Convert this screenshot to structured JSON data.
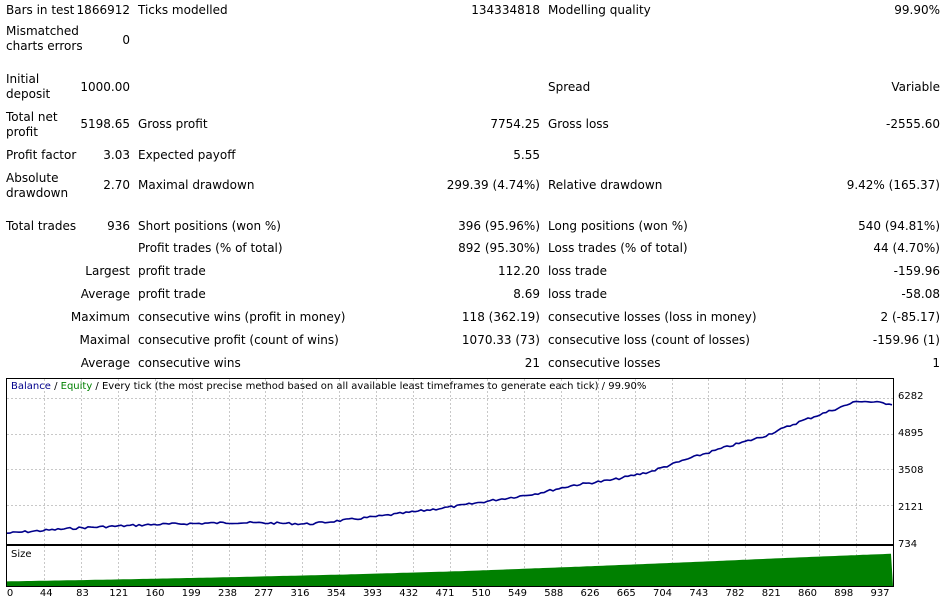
{
  "stats": {
    "bars_in_test_label": "Bars in test",
    "bars_in_test_value": "1866912",
    "ticks_modelled_label": "Ticks modelled",
    "ticks_modelled_value": "134334818",
    "modelling_quality_label": "Modelling quality",
    "modelling_quality_value": "99.90%",
    "mismatched_label": "Mismatched\ncharts errors",
    "mismatched_value": "0",
    "initial_deposit_label": "Initial\ndeposit",
    "initial_deposit_value": "1000.00",
    "spread_label": "Spread",
    "spread_value": "Variable",
    "total_net_profit_label": "Total net\nprofit",
    "total_net_profit_value": "5198.65",
    "gross_profit_label": "Gross profit",
    "gross_profit_value": "7754.25",
    "gross_loss_label": "Gross loss",
    "gross_loss_value": "-2555.60",
    "profit_factor_label": "Profit factor",
    "profit_factor_value": "3.03",
    "expected_payoff_label": "Expected payoff",
    "expected_payoff_value": "5.55",
    "absolute_drawdown_label": "Absolute\ndrawdown",
    "absolute_drawdown_value": "2.70",
    "maximal_drawdown_label": "Maximal drawdown",
    "maximal_drawdown_value": "299.39 (4.74%)",
    "relative_drawdown_label": "Relative drawdown",
    "relative_drawdown_value": "9.42% (165.37)",
    "total_trades_label": "Total trades",
    "total_trades_value": "936",
    "short_positions_label": "Short positions (won %)",
    "short_positions_value": "396 (95.96%)",
    "long_positions_label": "Long positions (won %)",
    "long_positions_value": "540 (94.81%)",
    "profit_trades_label": "Profit trades (% of total)",
    "profit_trades_value": "892 (95.30%)",
    "loss_trades_label": "Loss trades (% of total)",
    "loss_trades_value": "44 (4.70%)",
    "largest_label": "Largest",
    "largest_profit_label": "profit trade",
    "largest_profit_value": "112.20",
    "largest_loss_label": "loss trade",
    "largest_loss_value": "-159.96",
    "average_label": "Average",
    "average_profit_label": "profit trade",
    "average_profit_value": "8.69",
    "average_loss_label": "loss trade",
    "average_loss_value": "-58.08",
    "maximum_label": "Maximum",
    "max_cons_wins_label": "consecutive wins (profit in money)",
    "max_cons_wins_value": "118 (362.19)",
    "max_cons_losses_label": "consecutive losses (loss in money)",
    "max_cons_losses_value": "2 (-85.17)",
    "maximal_label": "Maximal",
    "maximal_cons_profit_label": "consecutive profit (count of wins)",
    "maximal_cons_profit_value": "1070.33 (73)",
    "maximal_cons_loss_label": "consecutive loss (count of losses)",
    "maximal_cons_loss_value": "-159.96 (1)",
    "average2_label": "Average",
    "avg_cons_wins_label": "consecutive wins",
    "avg_cons_wins_value": "21",
    "avg_cons_losses_label": "consecutive losses",
    "avg_cons_losses_value": "1"
  },
  "chart_data": [
    {
      "type": "line",
      "legend": {
        "balance": "Balance",
        "sep1": " / ",
        "equity": "Equity",
        "sep2": " / ",
        "method": "Every tick (the most precise method based on all available least timeframes to generate each tick)",
        "sep3": " / ",
        "quality": "99.90%"
      },
      "series": [
        {
          "name": "Balance",
          "color": "#00008b"
        },
        {
          "name": "Equity",
          "color": "#008000"
        }
      ],
      "x": [
        0,
        40,
        80,
        120,
        160,
        200,
        240,
        280,
        320,
        360,
        400,
        440,
        480,
        520,
        560,
        600,
        640,
        680,
        720,
        760,
        800,
        840,
        880,
        900,
        937
      ],
      "balance": [
        1000,
        1110,
        1215,
        1280,
        1345,
        1380,
        1415,
        1395,
        1360,
        1520,
        1690,
        1880,
        2080,
        2320,
        2550,
        2880,
        3080,
        3400,
        3900,
        4360,
        4780,
        5380,
        5900,
        6170,
        6050
      ],
      "y_ticks": [
        "6282",
        "4895",
        "3508",
        "2121",
        "734"
      ],
      "ylim": [
        734,
        6282
      ],
      "x_ticks": [
        "0",
        "44",
        "83",
        "121",
        "160",
        "199",
        "238",
        "277",
        "316",
        "354",
        "393",
        "432",
        "471",
        "510",
        "549",
        "588",
        "626",
        "665",
        "704",
        "743",
        "782",
        "821",
        "860",
        "898",
        "937"
      ]
    },
    {
      "type": "area",
      "title": "Size",
      "color": "#008000",
      "x": [
        0,
        120,
        240,
        360,
        480,
        600,
        720,
        840,
        937
      ],
      "values": [
        0.14,
        0.2,
        0.27,
        0.35,
        0.45,
        0.58,
        0.72,
        0.87,
        0.98
      ]
    }
  ]
}
